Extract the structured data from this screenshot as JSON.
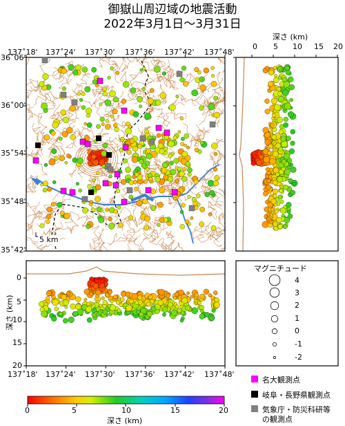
{
  "title_line1": "御嶽山周辺域の地震活動",
  "title_line2": "2022年3月1日～3月31日",
  "lon_ticks": [
    "137˚18'",
    "137˚24'",
    "137˚30'",
    "137˚36'",
    "137˚42'",
    "137˚48'"
  ],
  "lat_ticks": [
    "36˚06'",
    "36˚00'",
    "35˚54'",
    "35˚48'",
    "35˚42'"
  ],
  "depth_axis_top": {
    "label": "深さ (km)",
    "ticks": [
      "0",
      "5",
      "10",
      "15",
      "20"
    ]
  },
  "depth_axis_side": {
    "label": "深さ (km)",
    "ticks": [
      "0",
      "5",
      "10",
      "15",
      "20"
    ]
  },
  "scale_bar": "5 km",
  "colorbar": {
    "label": "深さ (km)",
    "ticks": [
      "0",
      "5",
      "10",
      "15",
      "20"
    ],
    "range": [
      0,
      20
    ]
  },
  "magnitude_legend": {
    "title": "マグニチュード",
    "entries": [
      {
        "label": "4",
        "mag": 4
      },
      {
        "label": "3",
        "mag": 3
      },
      {
        "label": "2",
        "mag": 2
      },
      {
        "label": "1",
        "mag": 1
      },
      {
        "label": "0",
        "mag": 0
      },
      {
        "label": "-1",
        "mag": -1
      },
      {
        "label": "-2",
        "mag": -2
      }
    ]
  },
  "station_legend": [
    {
      "label": "名大観測点",
      "color": "#ff00ff"
    },
    {
      "label": "岐阜・長野県観測点",
      "color": "#000000"
    },
    {
      "label": "気象庁・防災科研等",
      "color": "#808080"
    },
    {
      "label": "の観測点",
      "color": ""
    }
  ],
  "colors": {
    "contour": "#c8864c",
    "river": "#3a7fd9",
    "boundary": "#000000",
    "frame": "#000000"
  }
}
